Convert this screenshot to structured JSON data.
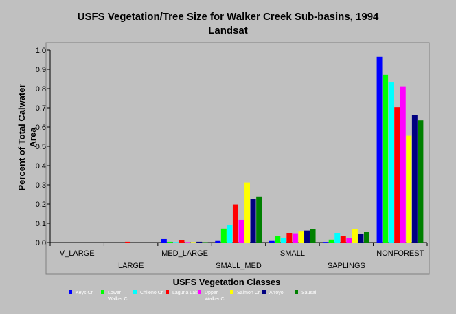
{
  "chart_data": {
    "type": "bar",
    "title_lines": [
      "USFS Vegetation/Tree Size for Walker Creek Sub-basins, 1994",
      "Landsat"
    ],
    "xlabel": "USFS Vegetation Classes",
    "ylabel_lines": [
      "Percent of Total Calwater",
      "Area"
    ],
    "ylim": [
      0,
      1.0
    ],
    "yticks": [
      "0.0",
      "0.1",
      "0.2",
      "0.3",
      "0.4",
      "0.5",
      "0.6",
      "0.7",
      "0.8",
      "0.9",
      "1.0"
    ],
    "grid": false,
    "legend_position": "bottom",
    "categories": [
      "V_LARGE",
      "LARGE",
      "MED_LARGE",
      "SMALL_MED",
      "SMALL",
      "SAPLINGS",
      "NONFOREST"
    ],
    "series": [
      {
        "name": "Keys Cr",
        "label_lines": [
          "Keys Cr"
        ],
        "color": "#0000ff",
        "values": [
          0,
          0,
          0.018,
          0.008,
          0.008,
          0.003,
          0.965
        ]
      },
      {
        "name": "Lower Walker Cr",
        "label_lines": [
          "Lower",
          "Walker Cr"
        ],
        "color": "#00ff00",
        "values": [
          0,
          0,
          0.004,
          0.072,
          0.035,
          0.015,
          0.872
        ]
      },
      {
        "name": "Chileno Cr",
        "label_lines": [
          "Chileno Cr"
        ],
        "color": "#00ffff",
        "values": [
          0,
          0,
          0.002,
          0.09,
          0.025,
          0.05,
          0.832
        ]
      },
      {
        "name": "Laguna Lake",
        "label_lines": [
          "Laguna Lake"
        ],
        "color": "#ff0000",
        "values": [
          0,
          0.004,
          0.012,
          0.198,
          0.05,
          0.033,
          0.703
        ]
      },
      {
        "name": "Upper Walker Cr",
        "label_lines": [
          "Upper",
          "Walker Cr"
        ],
        "color": "#ff00ff",
        "values": [
          0,
          0,
          0.002,
          0.118,
          0.048,
          0.025,
          0.812
        ]
      },
      {
        "name": "Salmon Cr",
        "label_lines": [
          "Salmon Cr"
        ],
        "color": "#ffff00",
        "values": [
          0,
          0,
          0.002,
          0.312,
          0.06,
          0.068,
          0.555
        ]
      },
      {
        "name": "Arroyo",
        "label_lines": [
          "Arroyo"
        ],
        "color": "#000080",
        "values": [
          0,
          0,
          0.004,
          0.228,
          0.062,
          0.045,
          0.663
        ]
      },
      {
        "name": "Sausal",
        "label_lines": [
          "Sausal"
        ],
        "color": "#008000",
        "values": [
          0,
          0,
          0.002,
          0.24,
          0.068,
          0.055,
          0.635
        ]
      }
    ]
  }
}
